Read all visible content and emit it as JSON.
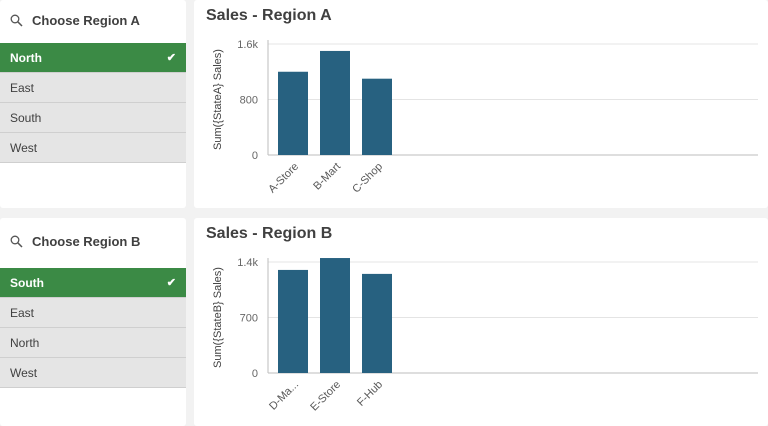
{
  "filters": [
    {
      "title": "Choose Region A",
      "items": [
        {
          "label": "North",
          "selected": true
        },
        {
          "label": "East",
          "selected": false
        },
        {
          "label": "South",
          "selected": false
        },
        {
          "label": "West",
          "selected": false
        }
      ]
    },
    {
      "title": "Choose Region B",
      "items": [
        {
          "label": "South",
          "selected": true
        },
        {
          "label": "East",
          "selected": false
        },
        {
          "label": "North",
          "selected": false
        },
        {
          "label": "West",
          "selected": false
        }
      ]
    }
  ],
  "icons": {
    "search": "search-icon",
    "check": "check-icon"
  },
  "colors": {
    "selected": "#3b8a45",
    "bar": "#276180"
  },
  "chart_data": [
    {
      "type": "bar",
      "title": "Sales - Region A",
      "ylabel": "Sum({StateA} Sales)",
      "categories": [
        "A-Store",
        "B-Mart",
        "C-Shop"
      ],
      "values": [
        1200,
        1500,
        1100
      ],
      "ylim": [
        0,
        1600
      ],
      "yticks": [
        0,
        800,
        1600
      ],
      "ytick_labels": [
        "0",
        "800",
        "1.6k"
      ],
      "grid": true
    },
    {
      "type": "bar",
      "title": "Sales - Region B",
      "ylabel": "Sum({StateB} Sales)",
      "categories": [
        "D-Ma...",
        "E-Store",
        "F-Hub"
      ],
      "values": [
        1300,
        1450,
        1250
      ],
      "ylim": [
        0,
        1400
      ],
      "yticks": [
        0,
        700,
        1400
      ],
      "ytick_labels": [
        "0",
        "700",
        "1.4k"
      ],
      "grid": true
    }
  ]
}
